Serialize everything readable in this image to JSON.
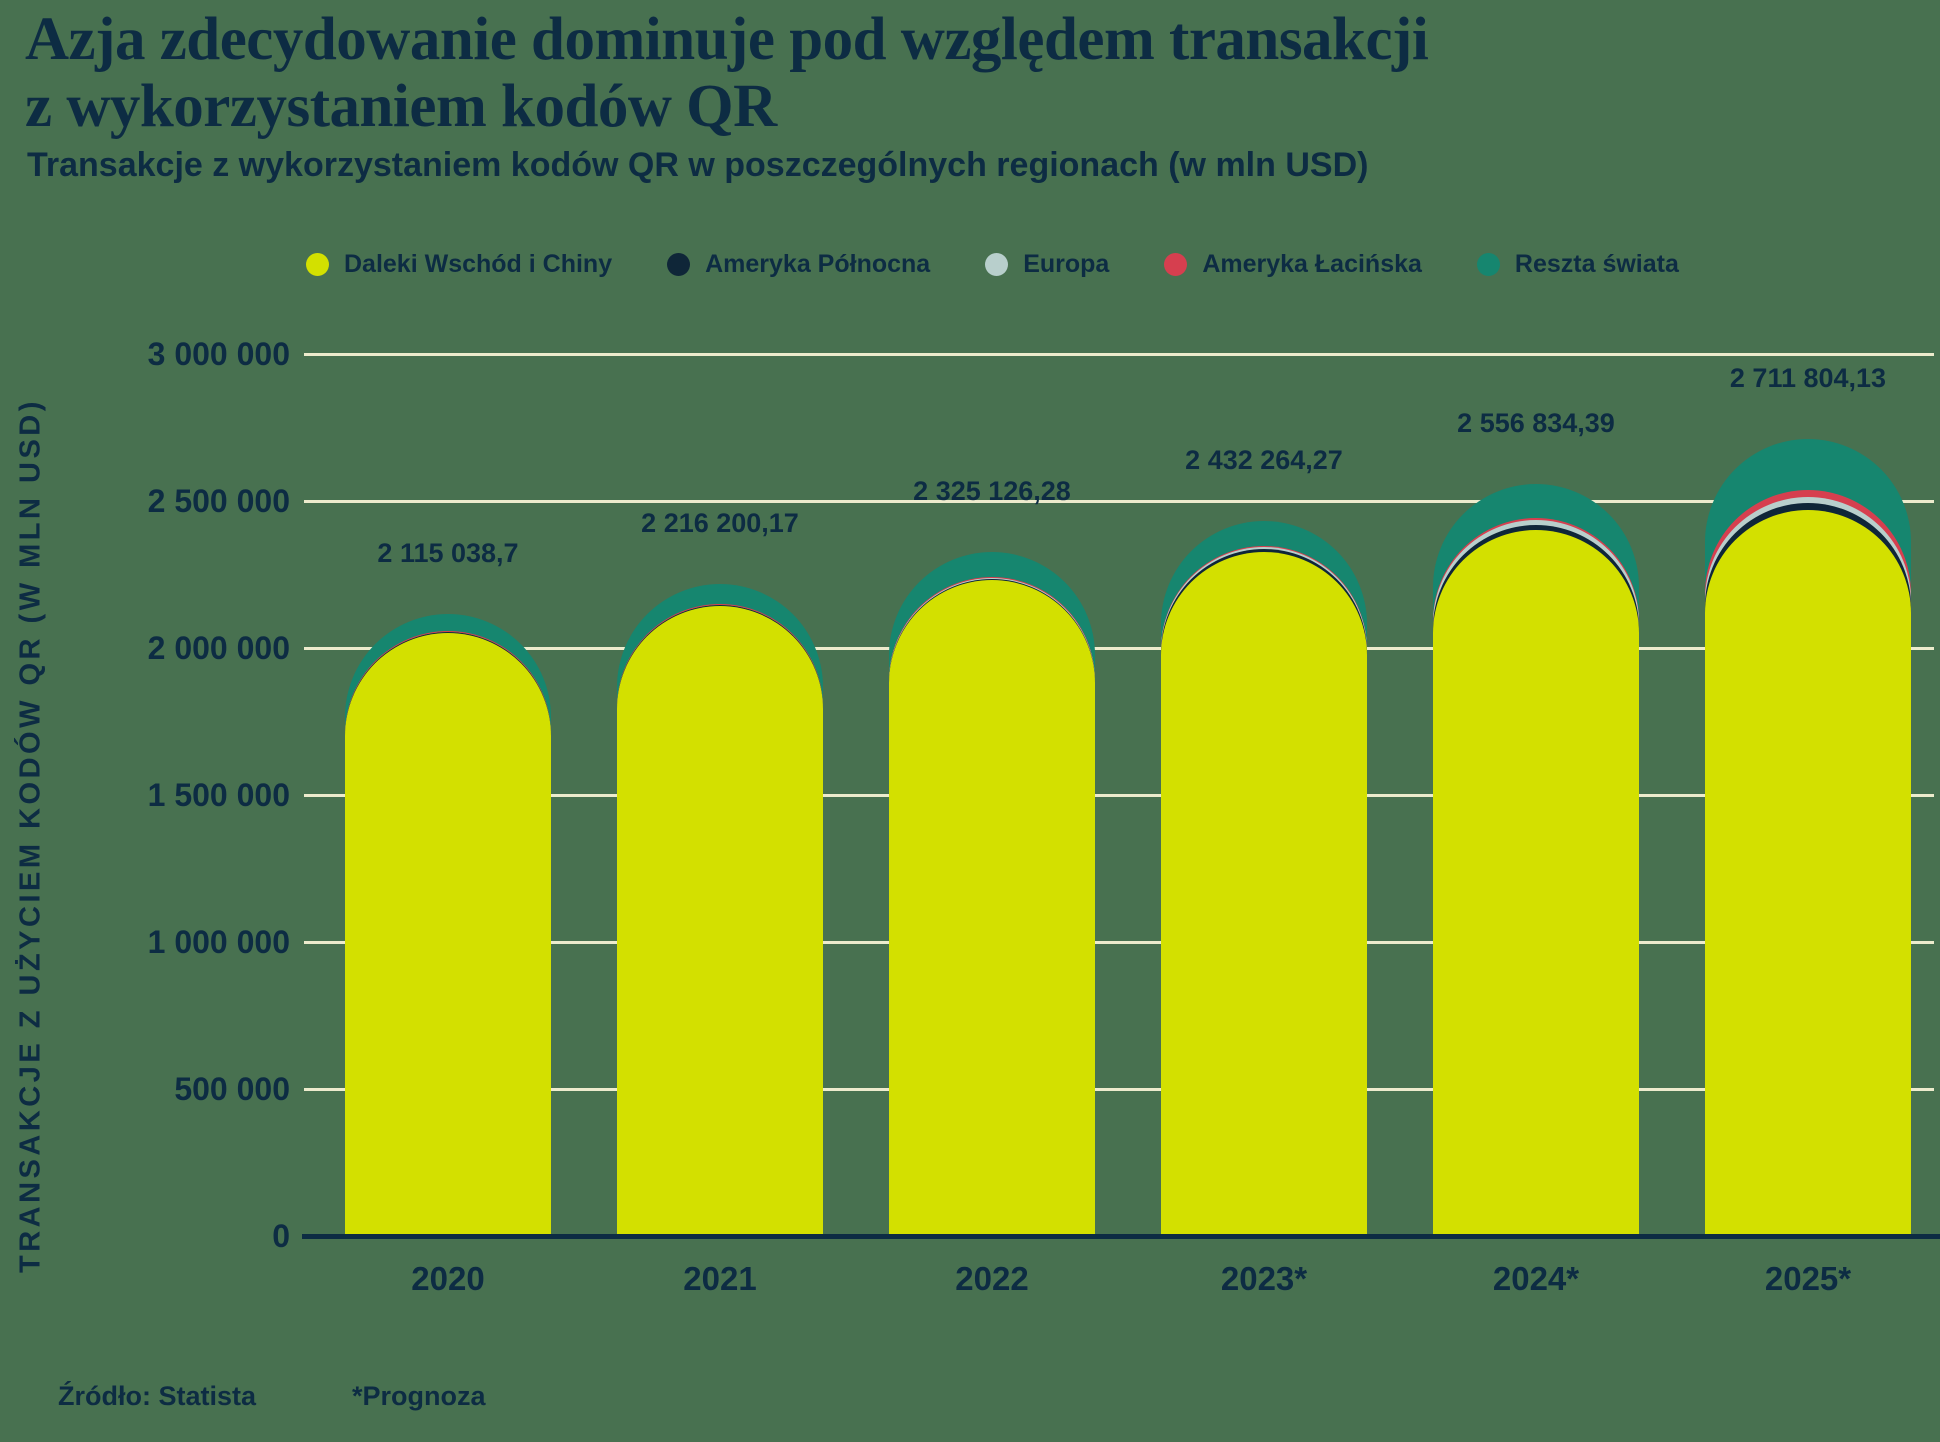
{
  "header": {
    "title_line1": "Azja zdecydowanie dominuje pod względem transakcji",
    "title_line2": "z wykorzystaniem kodów QR",
    "subtitle": "Transakcje z wykorzystaniem kodów QR w poszczególnych regionach (w mln USD)"
  },
  "footer": {
    "source": "Źródło: Statista",
    "forecast_note": "*Prognoza"
  },
  "colors": {
    "background": "#487150",
    "text": "#0d2c43",
    "gridline": "#edebcd",
    "axis_line": "#0d2c43",
    "far_east_china": "#d3e000",
    "north_america": "#0f2638",
    "europe": "#b8cfcc",
    "latin_america": "#d63f4f",
    "rest_of_world": "#16866f"
  },
  "chart_data": {
    "type": "bar",
    "stacked": true,
    "title": "Azja zdecydowanie dominuje pod względem transakcji z wykorzystaniem kodów QR",
    "subtitle": "Transakcje z wykorzystaniem kodów QR w poszczególnych regionach (w mln USD)",
    "xlabel": "",
    "ylabel": "TRANSAKCJE Z UŻYCIEM KODÓW QR (W MLN USD)",
    "ylim": [
      0,
      3000000
    ],
    "grid": "horizontal",
    "legend_position": "top",
    "categories": [
      "2020",
      "2021",
      "2022",
      "2023*",
      "2024*",
      "2025*"
    ],
    "totals": [
      2115038.7,
      2216200.17,
      2325126.28,
      2432264.27,
      2556834.39,
      2711804.13
    ],
    "total_labels": [
      "2 115 038,7",
      "2 216 200,17",
      "2 325 126,28",
      "2 432 264,27",
      "2 556 834,39",
      "2 711 804,13"
    ],
    "series": [
      {
        "name": "Daleki Wschód i Chiny",
        "color": "#d3e000",
        "values": [
          2052000,
          2142000,
          2232000,
          2325000,
          2400000,
          2470000
        ]
      },
      {
        "name": "Ameryka Północna",
        "color": "#0f2638",
        "values": [
          2000,
          3000,
          4000,
          13000,
          20000,
          24000
        ]
      },
      {
        "name": "Europa",
        "color": "#b8cfcc",
        "values": [
          1500,
          2200,
          3000,
          4500,
          17000,
          20000
        ]
      },
      {
        "name": "Ameryka Łacińska",
        "color": "#d63f4f",
        "values": [
          1500,
          2000,
          2500,
          3000,
          5000,
          22000
        ]
      },
      {
        "name": "Reszta świata",
        "color": "#16866f",
        "values": [
          58038.7,
          67000.17,
          83626.28,
          86764.27,
          114834.39,
          175804.13
        ]
      }
    ],
    "yticks": [
      {
        "value": 0,
        "label": "0"
      },
      {
        "value": 500000,
        "label": "500 000"
      },
      {
        "value": 1000000,
        "label": "1 000 000"
      },
      {
        "value": 1500000,
        "label": "1 500 000"
      },
      {
        "value": 2000000,
        "label": "2 000 000"
      },
      {
        "value": 2500000,
        "label": "2 500 000"
      },
      {
        "value": 3000000,
        "label": "3 000 000"
      }
    ]
  }
}
